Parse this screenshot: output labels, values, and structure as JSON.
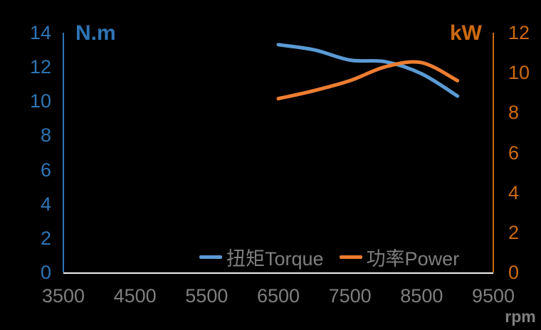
{
  "chart_data": {
    "type": "line",
    "x": [
      6500,
      7000,
      7500,
      8000,
      8500,
      9000
    ],
    "series": [
      {
        "name": "扭矩Torque",
        "axis": "left",
        "unit": "N.m",
        "color": "#5B9BD5",
        "values": [
          13.3,
          13.0,
          12.4,
          12.3,
          11.6,
          10.3
        ]
      },
      {
        "name": "功率Power",
        "axis": "right",
        "unit": "kW",
        "color": "#ED7D31",
        "values": [
          8.7,
          9.1,
          9.6,
          10.3,
          10.5,
          9.6
        ]
      }
    ],
    "x_axis": {
      "label": "rpm",
      "min": 3500,
      "max": 9500,
      "ticks": [
        3500,
        4500,
        5500,
        6500,
        7500,
        8500,
        9500
      ],
      "tick_color": "#7F7F7F",
      "line_color": "#F0F0F0"
    },
    "y_axis_left": {
      "label": "N.m",
      "min": 0,
      "max": 14,
      "tick_step": 2,
      "color": "#2E75B6"
    },
    "y_axis_right": {
      "label": "kW",
      "min": 0,
      "max": 12,
      "tick_step": 2,
      "color": "#CE6A10"
    },
    "title": "",
    "grid": false,
    "background": "#000000",
    "legend_position": "bottom-center-inside",
    "line_smooth": true
  }
}
